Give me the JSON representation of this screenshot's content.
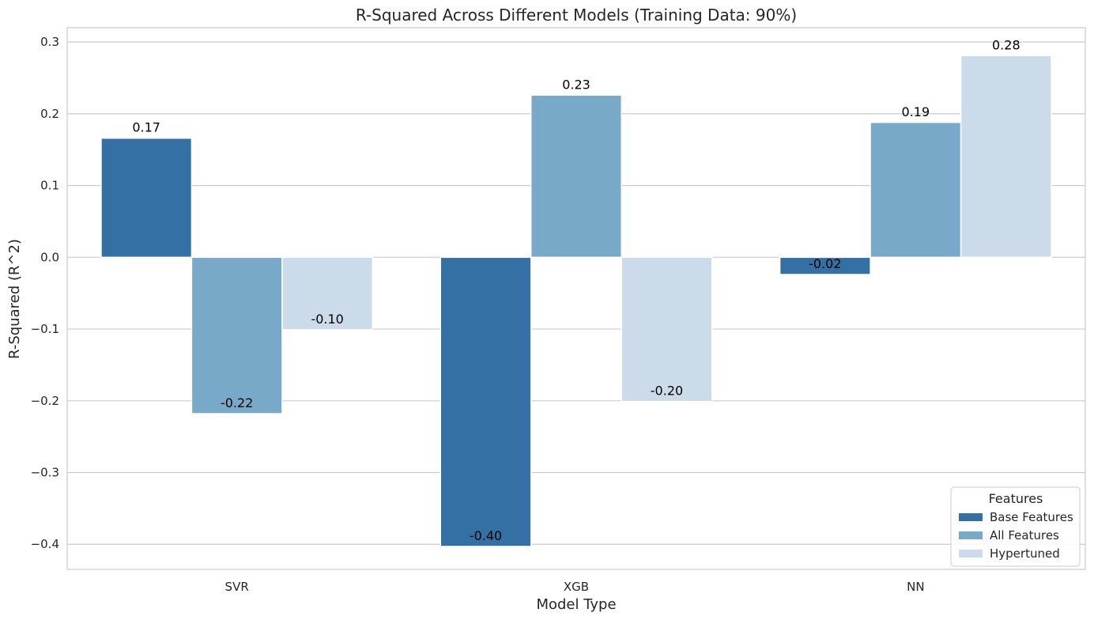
{
  "chart_data": {
    "type": "bar",
    "title": "R-Squared Across Different Models (Training Data: 90%)",
    "xlabel": "Model Type",
    "ylabel": "R-Squared (R^2)",
    "categories": [
      "SVR",
      "XGB",
      "NN"
    ],
    "series": [
      {
        "name": "Base Features",
        "color": "#3470a3",
        "values": [
          0.166,
          -0.403,
          -0.024
        ],
        "labels": [
          "0.17",
          "-0.40",
          "-0.02"
        ]
      },
      {
        "name": "All Features",
        "color": "#79a9c9",
        "values": [
          -0.218,
          0.226,
          0.188
        ],
        "labels": [
          "-0.22",
          "0.23",
          "0.19"
        ]
      },
      {
        "name": "Hypertuned",
        "color": "#cbdbea",
        "values": [
          -0.101,
          -0.201,
          0.281
        ],
        "labels": [
          "-0.10",
          "-0.20",
          "0.28"
        ]
      }
    ],
    "ylim": [
      -0.435,
      0.32
    ],
    "yticks": [
      0.3,
      0.2,
      0.1,
      0.0,
      -0.1,
      -0.2,
      -0.3,
      -0.4
    ],
    "ytick_labels": [
      "0.3",
      "0.2",
      "0.1",
      "0.0",
      "−0.1",
      "−0.2",
      "−0.3",
      "−0.4"
    ],
    "grid": true,
    "legend": {
      "title": "Features",
      "placement": "bottom-right"
    }
  }
}
